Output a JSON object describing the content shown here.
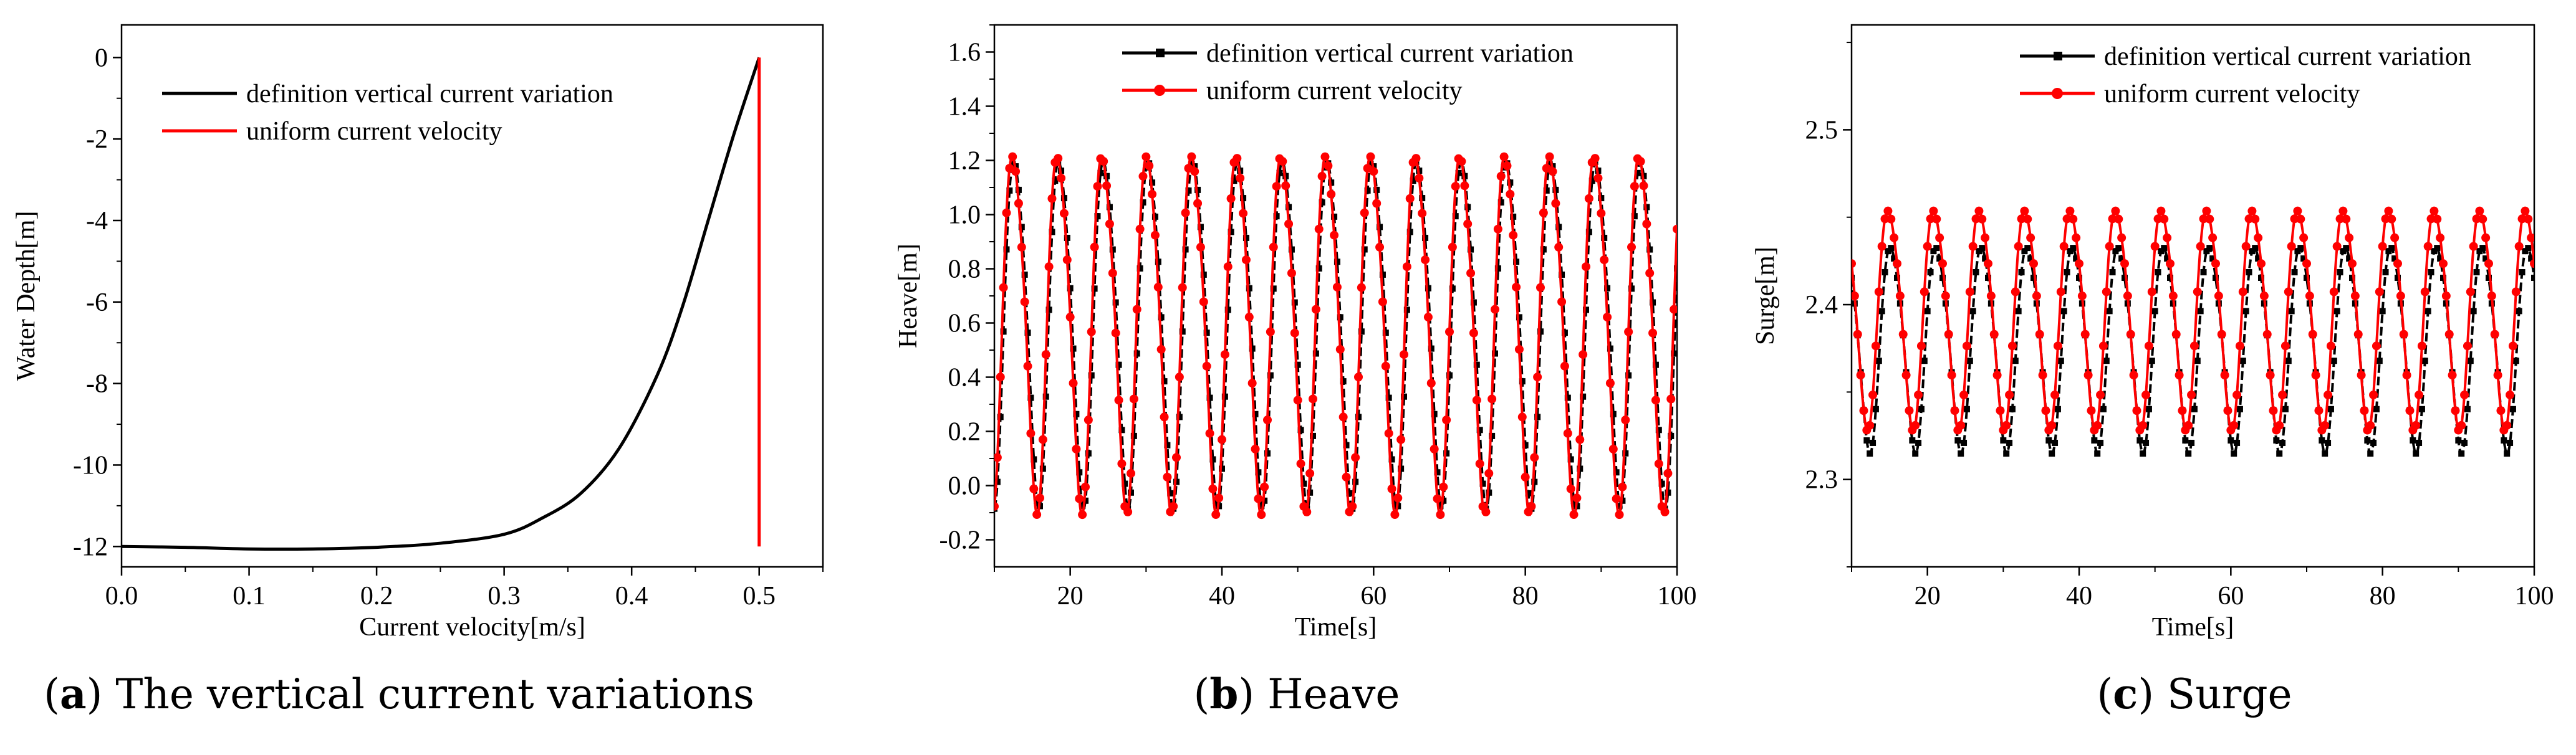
{
  "captions": [
    {
      "open": "(",
      "tag": "a",
      "close": ")",
      "text": " The vertical current variations"
    },
    {
      "open": "(",
      "tag": "b",
      "close": ")",
      "text": " Heave"
    },
    {
      "open": "(",
      "tag": "c",
      "close": ")",
      "text": " Surge"
    }
  ],
  "colors": {
    "series1": "#000000",
    "series2": "#ff0000"
  },
  "chart_data": [
    {
      "type": "line",
      "title": "",
      "xlabel": "Current  velocity[m/s]",
      "ylabel": "Water Depth[m]",
      "xlim": [
        0.0,
        0.55
      ],
      "ylim": [
        -12.5,
        0.8
      ],
      "xticks": [
        0.0,
        0.1,
        0.2,
        0.3,
        0.4,
        0.5
      ],
      "xtick_labels": [
        "0.0",
        "0.1",
        "0.2",
        "0.3",
        "0.4",
        "0.5"
      ],
      "yticks": [
        0,
        -2,
        -4,
        -6,
        -8,
        -10,
        -12
      ],
      "ytick_labels": [
        "0",
        "-2",
        "-4",
        "-6",
        "-8",
        "-10",
        "-12"
      ],
      "legend": [
        "definition vertical current variation",
        "uniform current velocity"
      ],
      "legend_position": "top-left",
      "series": [
        {
          "name": "definition vertical current variation",
          "x": [
            0.0,
            0.05,
            0.1,
            0.15,
            0.2,
            0.25,
            0.3,
            0.33,
            0.36,
            0.39,
            0.42,
            0.44,
            0.46,
            0.48,
            0.5
          ],
          "y": [
            -12.0,
            -12.02,
            -12.06,
            -12.06,
            -12.02,
            -11.92,
            -11.7,
            -11.3,
            -10.7,
            -9.6,
            -7.8,
            -6.1,
            -4.0,
            -1.9,
            0.0
          ]
        },
        {
          "name": "uniform current velocity",
          "x": [
            0.5,
            0.5
          ],
          "y": [
            -12.0,
            0.0
          ]
        }
      ]
    },
    {
      "type": "line",
      "title": "",
      "xlabel": "Time[s]",
      "ylabel": "Heave[m]",
      "xlim": [
        10,
        100
      ],
      "ylim": [
        -0.3,
        1.7
      ],
      "xticks": [
        20,
        40,
        60,
        80,
        100
      ],
      "xtick_labels": [
        "20",
        "40",
        "60",
        "80",
        "100"
      ],
      "yticks": [
        -0.2,
        0.0,
        0.2,
        0.4,
        0.6,
        0.8,
        1.0,
        1.2,
        1.4,
        1.6
      ],
      "ytick_labels": [
        "-0.2",
        "0.0",
        "0.2",
        "0.4",
        "0.6",
        "0.8",
        "1.0",
        "1.2",
        "1.4",
        "1.6"
      ],
      "legend": [
        "definition vertical current variation",
        "uniform current velocity"
      ],
      "legend_position": "top-right",
      "series": [
        {
          "name": "definition vertical current variation",
          "mean": 0.6,
          "amplitude": 0.63,
          "period": 5.9,
          "phase_time": 11.3,
          "start": 10,
          "end": 100
        },
        {
          "name": "uniform current velocity",
          "mean": 0.6,
          "amplitude": 0.65,
          "period": 5.9,
          "phase_time": 11.1,
          "start": 10,
          "end": 100
        }
      ]
    },
    {
      "type": "line",
      "title": "",
      "xlabel": "Time[s]",
      "ylabel": "Surge[m]",
      "xlim": [
        10,
        100
      ],
      "ylim": [
        2.25,
        2.56
      ],
      "xticks": [
        20,
        40,
        60,
        80,
        100
      ],
      "xtick_labels": [
        "20",
        "40",
        "60",
        "80",
        "100"
      ],
      "yticks": [
        2.3,
        2.4,
        2.5
      ],
      "ytick_labels": [
        "2.3",
        "2.4",
        "2.5"
      ],
      "legend": [
        "definition vertical current variation",
        "uniform current velocity"
      ],
      "legend_position": "top-right",
      "series": [
        {
          "name": "definition vertical current variation",
          "mean": 2.378,
          "amplitude": 0.058,
          "period": 6.0,
          "phase_time": 13.8,
          "start": 10,
          "end": 100
        },
        {
          "name": "uniform current velocity",
          "mean": 2.395,
          "amplitude": 0.062,
          "period": 6.0,
          "phase_time": 13.5,
          "start": 10,
          "end": 100
        }
      ]
    }
  ]
}
